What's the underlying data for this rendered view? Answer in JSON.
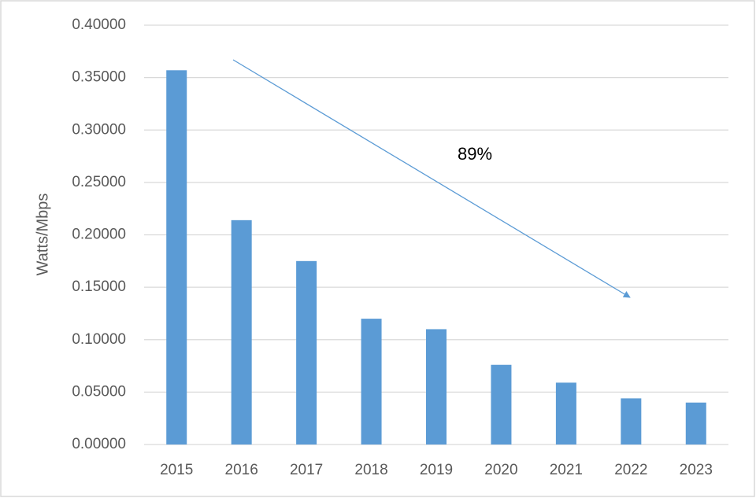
{
  "chart_data": {
    "type": "bar",
    "y_label": "Watts/Mbps",
    "annotation": "89%",
    "categories": [
      "2015",
      "2016",
      "2017",
      "2018",
      "2019",
      "2020",
      "2021",
      "2022",
      "2023"
    ],
    "values": [
      0.357,
      0.214,
      0.175,
      0.12,
      0.11,
      0.076,
      0.059,
      0.044,
      0.04
    ],
    "color": "#5b9bd5",
    "ylim": [
      0,
      0.4
    ],
    "yticks": [
      {
        "value": 0,
        "label": "0.00000"
      },
      {
        "value": 0.05,
        "label": "0.05000"
      },
      {
        "value": 0.1,
        "label": "0.10000"
      },
      {
        "value": 0.15,
        "label": "0.15000"
      },
      {
        "value": 0.2,
        "label": "0.20000"
      },
      {
        "value": 0.25,
        "label": "0.25000"
      },
      {
        "value": 0.3,
        "label": "0.30000"
      },
      {
        "value": 0.35,
        "label": "0.35000"
      },
      {
        "value": 0.4,
        "label": "0.40000"
      }
    ],
    "grid": true
  }
}
